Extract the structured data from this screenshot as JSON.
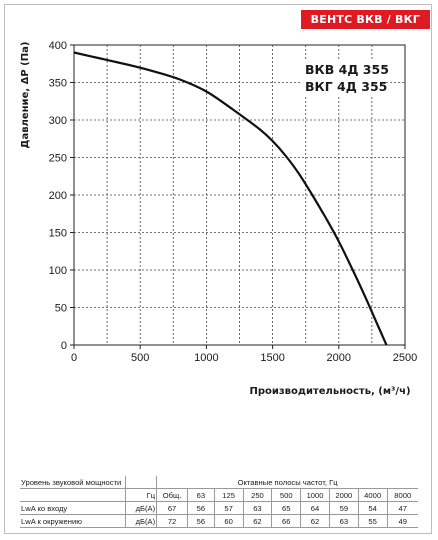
{
  "brand": "ВЕНТС ВКВ / ВКГ",
  "chart_data": {
    "type": "line",
    "title": "",
    "xlabel": "Производительность, (м³/ч)",
    "ylabel": "Давление, ΔР (Па)",
    "xlim": [
      0,
      2500
    ],
    "ylim": [
      0,
      400
    ],
    "x_ticks": [
      0,
      500,
      1000,
      1500,
      2000,
      2500
    ],
    "y_ticks": [
      0,
      50,
      100,
      150,
      200,
      250,
      300,
      350,
      400
    ],
    "grid": true,
    "series": [
      {
        "name": "",
        "x": [
          0,
          200,
          400,
          600,
          800,
          1000,
          1200,
          1400,
          1500,
          1600,
          1700,
          1800,
          1900,
          2000,
          2100,
          2200,
          2300,
          2360
        ],
        "y": [
          390,
          382,
          374,
          365,
          354,
          338,
          314,
          288,
          272,
          252,
          228,
          200,
          170,
          138,
          102,
          64,
          24,
          0
        ]
      }
    ],
    "annotations": [
      "ВКВ 4Д 355",
      "ВКГ 4Д 355"
    ]
  },
  "noise_table": {
    "title_label": "Уровень звуковой мощности",
    "bands_label": "Октавные полосы частот, Гц",
    "unit_hz": "Гц",
    "headers": [
      "Общ.",
      "63",
      "125",
      "250",
      "500",
      "1000",
      "2000",
      "4000",
      "8000"
    ],
    "rows": [
      {
        "label": "LwA ко входу",
        "unit": "дБ(А)",
        "values": [
          "67",
          "56",
          "57",
          "63",
          "65",
          "64",
          "59",
          "54",
          "47"
        ]
      },
      {
        "label": "LwA к окружению",
        "unit": "дБ(А)",
        "values": [
          "72",
          "56",
          "60",
          "62",
          "66",
          "62",
          "63",
          "55",
          "49"
        ]
      }
    ]
  }
}
